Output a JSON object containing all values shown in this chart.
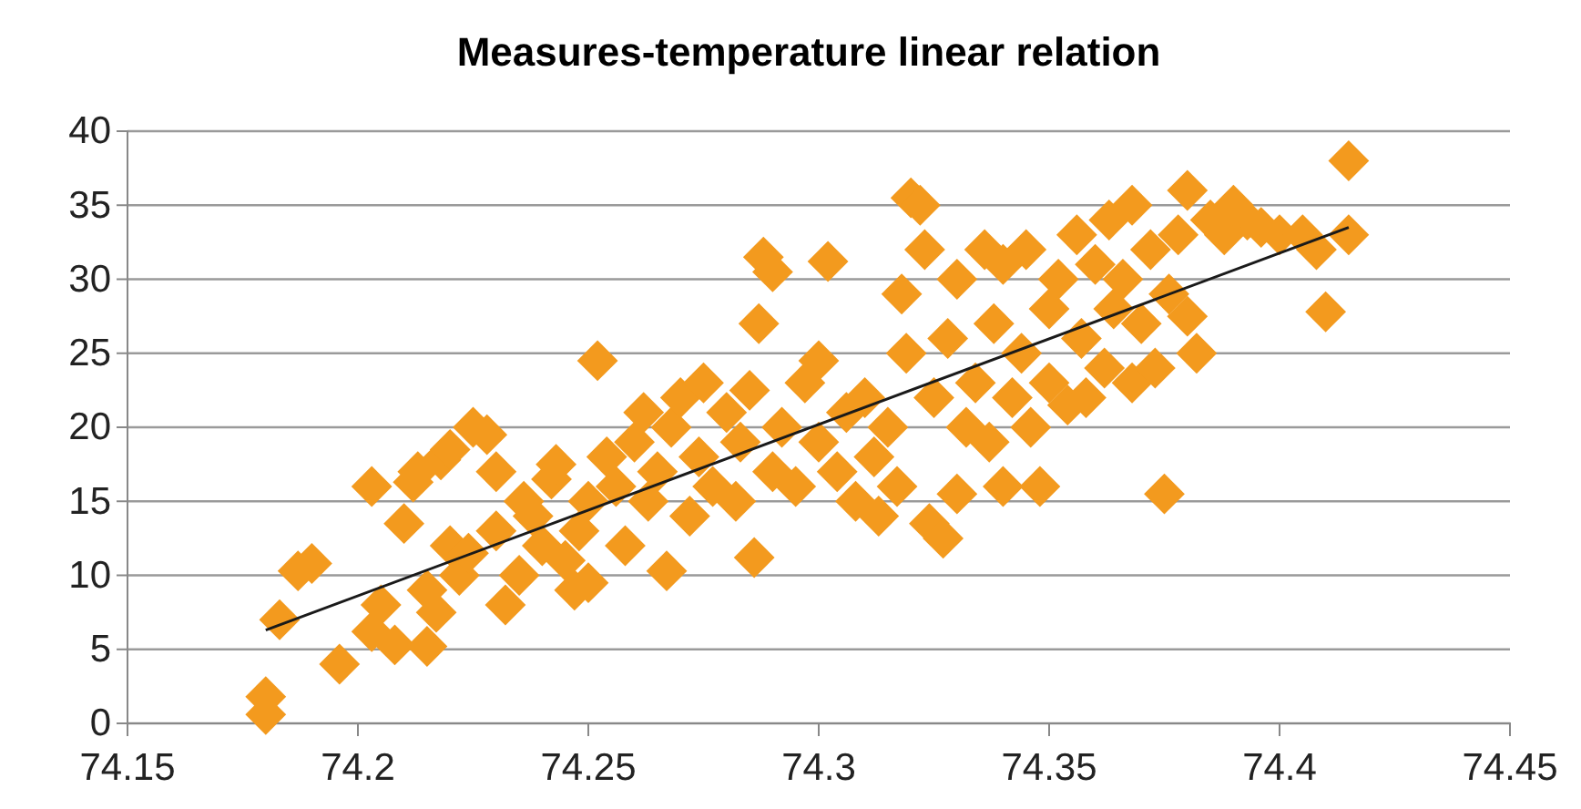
{
  "chart_data": {
    "type": "scatter",
    "title": "Measures-temperature linear relation",
    "grid": "y",
    "xlim": [
      74.15,
      74.45
    ],
    "xticks": [
      74.15,
      74.2,
      74.25,
      74.3,
      74.35,
      74.4,
      74.45
    ],
    "ylim": [
      0,
      40
    ],
    "yticks": [
      0,
      5,
      10,
      15,
      20,
      25,
      30,
      35,
      40
    ],
    "series": [
      {
        "marker": "diamond",
        "color": "#f39a1e",
        "x": [
          74.18,
          74.18,
          74.183,
          74.187,
          74.19,
          74.196,
          74.203,
          74.205,
          74.203,
          74.208,
          74.21,
          74.212,
          74.213,
          74.215,
          74.215,
          74.217,
          74.218,
          74.22,
          74.22,
          74.222,
          74.224,
          74.225,
          74.228,
          74.23,
          74.23,
          74.232,
          74.235,
          74.236,
          74.238,
          74.24,
          74.242,
          74.243,
          74.245,
          74.247,
          74.248,
          74.25,
          74.25,
          74.252,
          74.254,
          74.256,
          74.258,
          74.26,
          74.262,
          74.263,
          74.265,
          74.267,
          74.268,
          74.27,
          74.272,
          74.274,
          74.275,
          74.277,
          74.28,
          74.282,
          74.283,
          74.285,
          74.286,
          74.287,
          74.288,
          74.29,
          74.29,
          74.292,
          74.295,
          74.297,
          74.3,
          74.3,
          74.302,
          74.304,
          74.306,
          74.308,
          74.31,
          74.312,
          74.313,
          74.315,
          74.317,
          74.318,
          74.319,
          74.32,
          74.322,
          74.323,
          74.324,
          74.325,
          74.327,
          74.328,
          74.33,
          74.33,
          74.332,
          74.334,
          74.336,
          74.337,
          74.338,
          74.34,
          74.34,
          74.342,
          74.344,
          74.345,
          74.346,
          74.348,
          74.35,
          74.35,
          74.352,
          74.354,
          74.356,
          74.357,
          74.358,
          74.36,
          74.362,
          74.363,
          74.364,
          74.366,
          74.368,
          74.368,
          74.37,
          74.372,
          74.373,
          74.375,
          74.376,
          74.378,
          74.38,
          74.38,
          74.382,
          74.385,
          74.388,
          74.39,
          74.393,
          74.396,
          74.4,
          74.405,
          74.408,
          74.41,
          74.415,
          74.415
        ],
        "values": [
          1.8,
          0.6,
          7,
          10.3,
          10.8,
          4,
          16,
          8,
          6.2,
          5.3,
          13.5,
          16.3,
          17,
          9,
          5.2,
          7.5,
          17.8,
          18.5,
          12,
          10,
          11.5,
          20,
          19.5,
          17,
          13,
          8,
          10,
          15,
          14,
          12,
          16.5,
          17.5,
          11,
          9,
          13,
          9.5,
          15,
          24.5,
          18,
          16,
          12,
          19,
          21,
          15,
          17,
          10.3,
          20,
          22,
          14,
          18,
          23,
          16,
          21,
          15,
          19,
          22.5,
          11.2,
          27,
          31.5,
          30.5,
          17,
          20,
          16,
          23,
          19,
          24.5,
          31.2,
          17,
          21,
          15,
          22,
          18,
          14,
          20,
          16,
          29,
          25,
          35.5,
          35,
          32,
          13.5,
          22,
          12.5,
          26,
          15.5,
          30,
          20,
          23,
          32,
          19,
          27,
          16,
          31,
          22,
          25,
          32,
          20,
          16,
          28,
          23,
          30,
          21.5,
          33,
          26,
          22,
          31,
          24,
          34,
          28,
          30,
          35,
          23,
          27,
          32,
          24,
          15.5,
          29,
          33,
          36,
          27.5,
          25,
          34,
          33,
          35,
          34,
          33.5,
          33,
          33,
          32,
          27.8,
          38,
          33
        ]
      },
      {
        "type": "line",
        "color": "#1a1a1a",
        "x": [
          74.18,
          74.415
        ],
        "values": [
          6.3,
          33.5
        ]
      }
    ]
  }
}
